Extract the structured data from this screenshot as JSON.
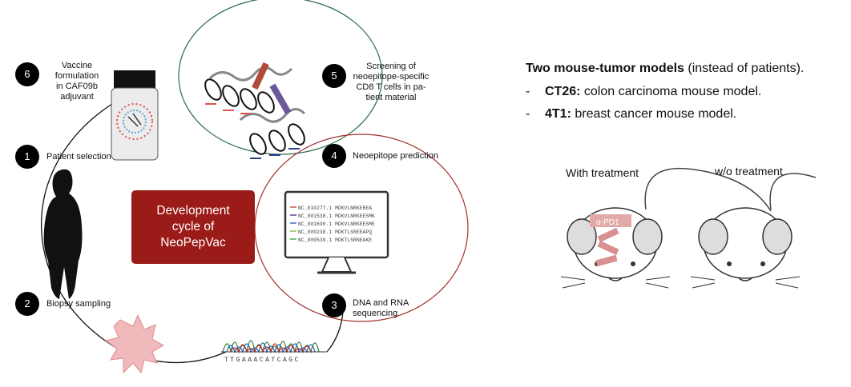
{
  "steps": {
    "s1": {
      "num": "1",
      "label": "Patient selection"
    },
    "s2": {
      "num": "2",
      "label": "Biopsy sampling"
    },
    "s3": {
      "num": "3",
      "label_line1": "DNA and RNA",
      "label_line2": "sequencing"
    },
    "s4": {
      "num": "4",
      "label": "Neoepitope prediction"
    },
    "s5": {
      "num": "5",
      "label_line1": "Screening of",
      "label_line2": "neoepitope-specific",
      "label_line3": "CD8 T cells in pa-",
      "label_line4": "tient material"
    },
    "s6": {
      "num": "6",
      "label_line1": "Vaccine",
      "label_line2": "formulation",
      "label_line3": "in CAF09b",
      "label_line4": "adjuvant"
    }
  },
  "center": {
    "line1": "Development",
    "line2": "cycle of",
    "line3": "NeoPepVac"
  },
  "sequence_text": "TTGAAACATCAGC",
  "monitor_rows": [
    {
      "id": "NC_010277.1",
      "seq": "MDKVLNRKEREA",
      "color": "#d9534f"
    },
    {
      "id": "NC_001538.1",
      "seq": "MDKVLNRKEESMK",
      "color": "#6a3d9a"
    },
    {
      "id": "NC_001699.1",
      "seq": "MDKVLNRKEESME",
      "color": "#3b6fd8"
    },
    {
      "id": "NC_009238.1",
      "seq": "MDKTLSREEAPQ",
      "color": "#8bc34a"
    },
    {
      "id": "NC_009539.1",
      "seq": "MDKTLSRNEAKE",
      "color": "#4caf50"
    }
  ],
  "right": {
    "title_bold": "Two mouse-tumor models",
    "title_rest": " (instead of patients).",
    "bullets": [
      {
        "dash": "-",
        "bold": "CT26:",
        "text": " colon carcinoma mouse model."
      },
      {
        "dash": "-",
        "bold": "4T1:",
        "text": " breast cancer mouse model."
      }
    ],
    "mouse_with": "With treatment",
    "mouse_without": "w/o treatment",
    "antibody_label": "α-PD1"
  },
  "colors": {
    "center_box": "#9b1b18",
    "ellipse_green": "#2e6b47",
    "ellipse_red": "#a0302c",
    "cell_pink": "#f0b9bb"
  }
}
